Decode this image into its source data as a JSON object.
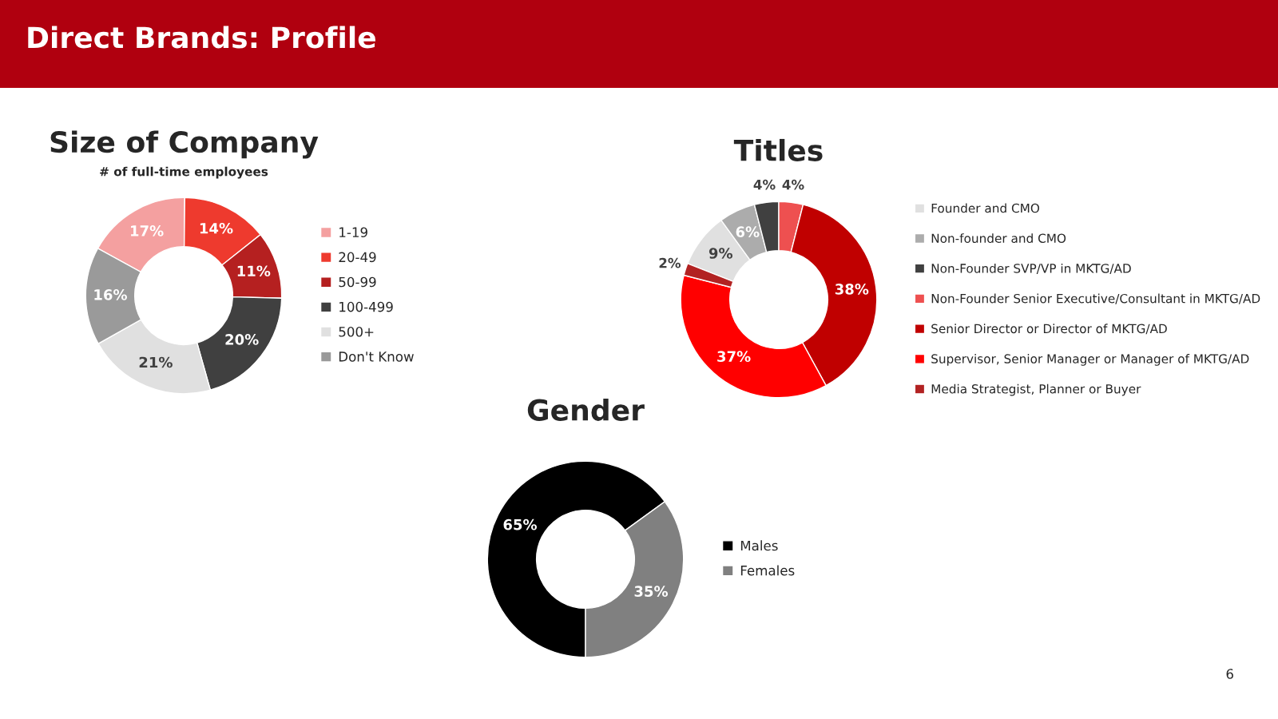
{
  "chart_data": [
    {
      "type": "other",
      "title": "Direct Brands: Profile",
      "annotations": [
        "6"
      ]
    },
    {
      "type": "donut",
      "title": "Size of Company",
      "subtitle": "# of full-time employees",
      "legend": "right",
      "categories": [
        "1-19",
        "20-49",
        "50-99",
        "100-499",
        "500+",
        "Don't Know"
      ],
      "values": [
        17,
        14,
        11,
        20,
        21,
        16
      ],
      "value_labels": [
        "17%",
        "14%",
        "11%",
        "20%",
        "21%",
        "16%"
      ],
      "colors": [
        "#f4a0a0",
        "#ee3a2e",
        "#b52020",
        "#404040",
        "#e0e0e0",
        "#9a9a9a"
      ]
    },
    {
      "type": "donut",
      "title": "Titles",
      "legend": "right",
      "categories": [
        "Founder and CMO",
        "Non-founder and CMO",
        "Non-Founder SVP/VP in MKTG/AD",
        "Non-Founder Senior Executive/Consultant in MKTG/AD",
        "Senior Director or Director of MKTG/AD",
        "Supervisor, Senior Manager or Manager of MKTG/AD",
        "Media Strategist, Planner or Buyer"
      ],
      "values": [
        9,
        6,
        4,
        4,
        38,
        37,
        2
      ],
      "value_labels": [
        "9%",
        "6%",
        "4%",
        "4%",
        "38%",
        "37%",
        "2%"
      ],
      "colors": [
        "#e0e0e0",
        "#acacac",
        "#404040",
        "#ee5050",
        "#c00000",
        "#ff0000",
        "#b22222"
      ]
    },
    {
      "type": "donut",
      "title": "Gender",
      "legend": "right",
      "categories": [
        "Males",
        "Females"
      ],
      "values": [
        65,
        35
      ],
      "value_labels": [
        "65%",
        "35%"
      ],
      "colors": [
        "#000000",
        "#808080"
      ]
    }
  ]
}
